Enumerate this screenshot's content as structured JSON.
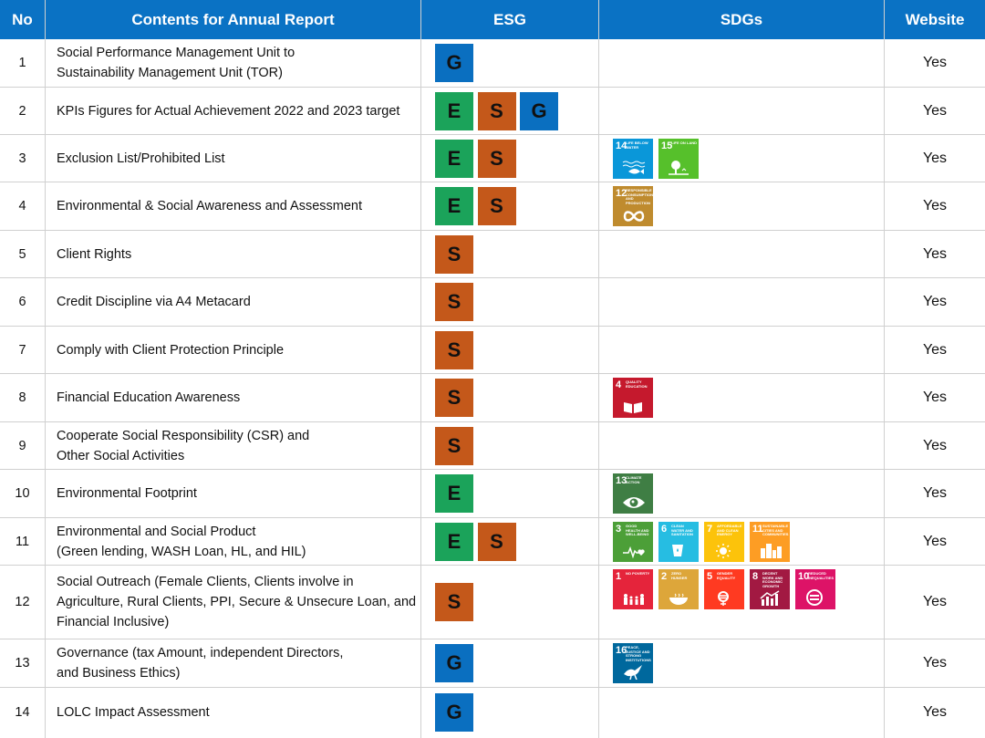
{
  "header": {
    "no": "No",
    "contents": "Contents for Annual Report",
    "esg": "ESG",
    "sdgs": "SDGs",
    "website": "Website"
  },
  "esg_colors": {
    "E": "#1ba35a",
    "S": "#c4581a",
    "G": "#0a6fc0"
  },
  "sdg_goals": {
    "1": {
      "color": "#e5243b",
      "label": "No Poverty",
      "icon": "family-icon"
    },
    "2": {
      "color": "#dda63a",
      "label": "Zero Hunger",
      "icon": "bowl-icon"
    },
    "3": {
      "color": "#4c9f38",
      "label": "Good Health and Well-Being",
      "icon": "heartbeat-icon"
    },
    "4": {
      "color": "#c5192d",
      "label": "Quality Education",
      "icon": "book-icon"
    },
    "5": {
      "color": "#ff3a21",
      "label": "Gender Equality",
      "icon": "gender-icon"
    },
    "6": {
      "color": "#26bde2",
      "label": "Clean Water and Sanitation",
      "icon": "water-icon"
    },
    "7": {
      "color": "#fcc30b",
      "label": "Affordable and Clean Energy",
      "icon": "sun-icon"
    },
    "8": {
      "color": "#a21942",
      "label": "Decent Work and Economic Growth",
      "icon": "growth-chart-icon"
    },
    "10": {
      "color": "#dd1367",
      "label": "Reduced Inequalities",
      "icon": "equals-icon"
    },
    "11": {
      "color": "#fd9d24",
      "label": "Sustainable Cities and Communities",
      "icon": "city-icon"
    },
    "12": {
      "color": "#bf8b2e",
      "label": "Responsible Consumption and Production",
      "icon": "infinity-icon"
    },
    "13": {
      "color": "#3f7e44",
      "label": "Climate Action",
      "icon": "eye-globe-icon"
    },
    "14": {
      "color": "#0a97d9",
      "label": "Life Below Water",
      "icon": "fish-icon"
    },
    "15": {
      "color": "#56c02b",
      "label": "Life on Land",
      "icon": "tree-icon"
    },
    "16": {
      "color": "#00689d",
      "label": "Peace, Justice and Strong Institutions",
      "icon": "dove-icon"
    }
  },
  "rows": [
    {
      "no": "1",
      "content": "Social Performance Management Unit to\nSustainability Management Unit (TOR)",
      "esg": [
        "G"
      ],
      "sdgs": [],
      "website": "Yes"
    },
    {
      "no": "2",
      "content": "KPIs Figures for Actual Achievement 2022 and 2023 target",
      "esg": [
        "E",
        "S",
        "G"
      ],
      "sdgs": [],
      "website": "Yes"
    },
    {
      "no": "3",
      "content": "Exclusion List/Prohibited List",
      "esg": [
        "E",
        "S"
      ],
      "sdgs": [
        "14",
        "15"
      ],
      "website": "Yes"
    },
    {
      "no": "4",
      "content": "Environmental & Social Awareness and Assessment",
      "esg": [
        "E",
        "S"
      ],
      "sdgs": [
        "12"
      ],
      "website": "Yes"
    },
    {
      "no": "5",
      "content": "Client Rights",
      "esg": [
        "S"
      ],
      "sdgs": [],
      "website": "Yes"
    },
    {
      "no": "6",
      "content": "Credit Discipline via A4 Metacard",
      "esg": [
        "S"
      ],
      "sdgs": [],
      "website": "Yes"
    },
    {
      "no": "7",
      "content": "Comply with Client Protection Principle",
      "esg": [
        "S"
      ],
      "sdgs": [],
      "website": "Yes"
    },
    {
      "no": "8",
      "content": "Financial Education Awareness",
      "esg": [
        "S"
      ],
      "sdgs": [
        "4"
      ],
      "website": "Yes"
    },
    {
      "no": "9",
      "content": "Cooperate Social Responsibility (CSR) and\nOther Social Activities",
      "esg": [
        "S"
      ],
      "sdgs": [],
      "website": "Yes"
    },
    {
      "no": "10",
      "content": "Environmental Footprint",
      "esg": [
        "E"
      ],
      "sdgs": [
        "13"
      ],
      "website": "Yes"
    },
    {
      "no": "11",
      "content": "Environmental and Social Product\n(Green lending, WASH Loan, HL, and HIL)",
      "esg": [
        "E",
        "S"
      ],
      "sdgs": [
        "3",
        "6",
        "7",
        "11"
      ],
      "website": "Yes"
    },
    {
      "no": "12",
      "content": "Social Outreach (Female Clients, Clients involve in\nAgriculture, Rural Clients, PPI, Secure & Unsecure Loan, and\nFinancial Inclusive)",
      "esg": [
        "S"
      ],
      "sdgs": [
        "1",
        "2",
        "5",
        "8",
        "10"
      ],
      "website": "Yes"
    },
    {
      "no": "13",
      "content": "Governance (tax Amount, independent Directors,\nand Business Ethics)",
      "esg": [
        "G"
      ],
      "sdgs": [
        "16"
      ],
      "website": "Yes"
    },
    {
      "no": "14",
      "content": "LOLC Impact Assessment",
      "esg": [
        "G"
      ],
      "sdgs": [],
      "website": "Yes"
    }
  ]
}
